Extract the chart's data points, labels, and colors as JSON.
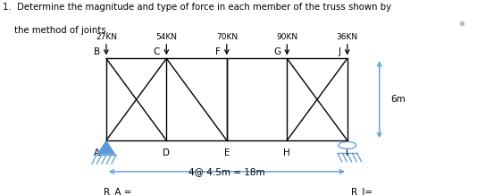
{
  "title_line1": "1.  Determine the magnitude and type of force in each member of the truss shown by",
  "title_line2": "    the method of joints.",
  "loads": [
    "27KN",
    "54KN",
    "70KN",
    "90KN",
    "36KN"
  ],
  "top_labels": [
    "B",
    "C",
    "F",
    "G",
    "J"
  ],
  "bot_labels": [
    "A",
    "D",
    "E",
    "H",
    "I"
  ],
  "ra_label": "R_A =",
  "ri_label": "R_I=",
  "span_label": "4@ 4.5m = 18m",
  "height_label": "6m",
  "truss_color": "#000000",
  "dim_color": "#5b9bd5",
  "bg_color": "#ffffff",
  "title_color": "#000000",
  "fig_width": 5.53,
  "fig_height": 2.18,
  "dpi": 100,
  "ox": 0.215,
  "oy": 0.28,
  "pw": 0.122,
  "th": 0.42
}
